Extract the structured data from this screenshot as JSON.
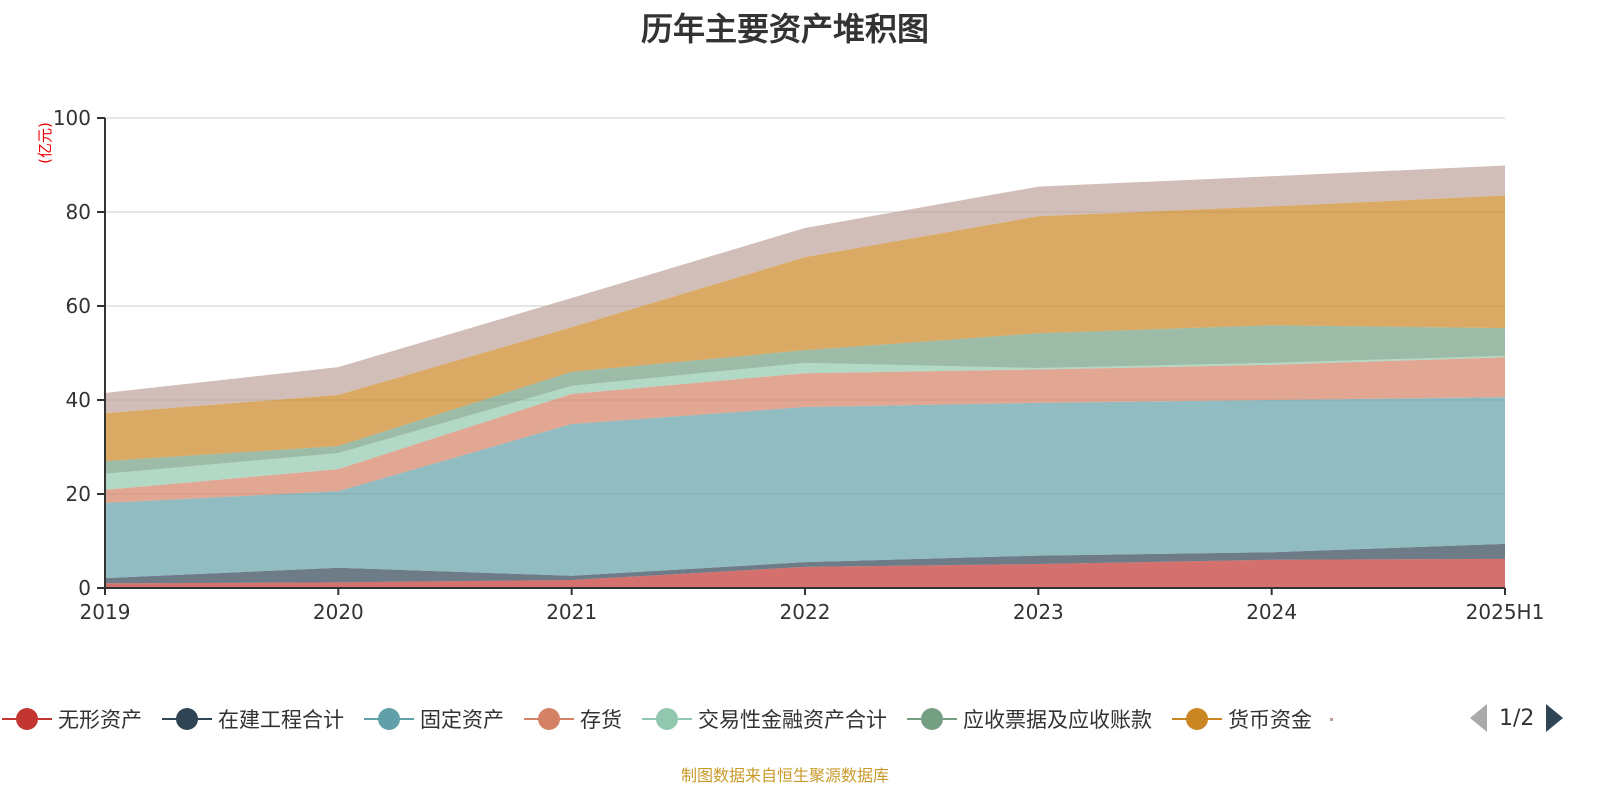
{
  "chart_data": {
    "type": "area",
    "stacked": true,
    "title": "历年主要资产堆积图",
    "ylabel": "(亿元)",
    "xlabel": "",
    "ylim": [
      0,
      100
    ],
    "yticks": [
      "0",
      "20",
      "40",
      "60",
      "80",
      "100"
    ],
    "categories": [
      "2019",
      "2020",
      "2021",
      "2022",
      "2023",
      "2024",
      "2025H1"
    ],
    "grid": true,
    "legend_position": "bottom",
    "series": [
      {
        "name": "无形资产",
        "color": "#c23531",
        "values": [
          1.0,
          1.2,
          1.7,
          4.5,
          5.1,
          6.0,
          6.2
        ]
      },
      {
        "name": "在建工程合计",
        "color": "#2f4554",
        "values": [
          1.1,
          3.1,
          0.9,
          1.0,
          1.8,
          1.6,
          3.2
        ]
      },
      {
        "name": "固定资产",
        "color": "#61a0a8",
        "values": [
          16.0,
          16.3,
          32.3,
          33.0,
          32.5,
          32.4,
          31.2
        ]
      },
      {
        "name": "存货",
        "color": "#d48265",
        "values": [
          2.8,
          4.7,
          6.4,
          7.2,
          7.1,
          7.5,
          8.5
        ]
      },
      {
        "name": "交易性金融资产合计",
        "color": "#91c7ae",
        "values": [
          3.4,
          3.4,
          1.7,
          2.2,
          0.3,
          0.4,
          0.3
        ]
      },
      {
        "name": "应收票据及应收账款",
        "color": "#749f83",
        "values": [
          2.7,
          1.5,
          3.0,
          2.7,
          7.4,
          8.0,
          5.9
        ]
      },
      {
        "name": "货币资金",
        "color": "#ca8622",
        "values": [
          10.2,
          10.9,
          9.5,
          19.8,
          24.9,
          25.3,
          28.2
        ]
      },
      {
        "name": "",
        "color": "#bda29a",
        "values": [
          4.3,
          5.9,
          6.2,
          6.2,
          6.3,
          6.4,
          6.4
        ]
      }
    ]
  },
  "legend": {
    "page": "1/2"
  },
  "source": "制图数据来自恒生聚源数据库"
}
